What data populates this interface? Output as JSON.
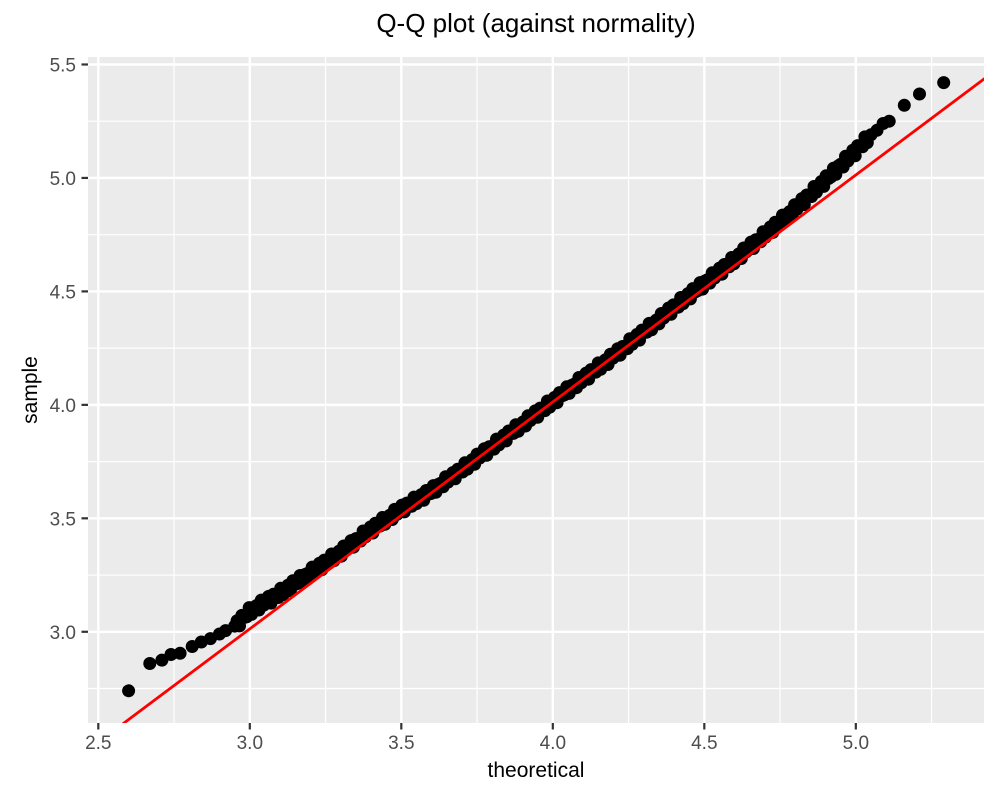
{
  "chart_data": {
    "type": "scatter",
    "title": "Q-Q plot (against normality)",
    "xlabel": "theoretical",
    "ylabel": "sample",
    "xlim": [
      2.466,
      5.423
    ],
    "ylim": [
      2.598,
      5.533
    ],
    "x_major_ticks": [
      2.5,
      3.0,
      3.5,
      4.0,
      4.5,
      5.0
    ],
    "y_major_ticks": [
      3.0,
      3.5,
      4.0,
      4.5,
      5.0,
      5.5
    ],
    "x_minor_gridlines": [
      2.75,
      3.25,
      3.75,
      4.25,
      4.75,
      5.25
    ],
    "y_minor_gridlines": [
      2.75,
      3.25,
      3.75,
      4.25,
      4.75,
      5.25
    ],
    "x_tick_labels": [
      "2.5",
      "3.0",
      "3.5",
      "4.0",
      "4.5",
      "5.0"
    ],
    "y_tick_labels": [
      "3.0",
      "3.5",
      "4.0",
      "4.5",
      "5.0",
      "5.5"
    ],
    "grid": "on",
    "legend": "none",
    "reference_line": {
      "x1": 2.58,
      "y1": 2.593,
      "x2": 5.43,
      "y2": 5.443
    },
    "tail_points": [
      [
        2.6,
        2.74
      ],
      [
        2.67,
        2.86
      ],
      [
        2.71,
        2.875
      ],
      [
        2.74,
        2.9
      ],
      [
        2.77,
        2.905
      ],
      [
        2.81,
        2.935
      ],
      [
        2.84,
        2.955
      ],
      [
        2.87,
        2.97
      ],
      [
        2.9,
        2.99
      ],
      [
        2.92,
        3.005
      ],
      [
        5.05,
        5.19
      ],
      [
        5.07,
        5.21
      ],
      [
        5.09,
        5.24
      ],
      [
        5.11,
        5.25
      ],
      [
        5.16,
        5.32
      ],
      [
        5.21,
        5.37
      ],
      [
        5.29,
        5.42
      ]
    ],
    "dense_band": {
      "x_start": 2.95,
      "x_end": 5.04,
      "x_step": 0.008,
      "y_jitter": 0.02,
      "center_points": [
        [
          2.95,
          3.025
        ],
        [
          3.0,
          3.09
        ],
        [
          3.05,
          3.13
        ],
        [
          3.1,
          3.17
        ],
        [
          3.15,
          3.215
        ],
        [
          3.2,
          3.26
        ],
        [
          3.25,
          3.305
        ],
        [
          3.3,
          3.35
        ],
        [
          3.35,
          3.4
        ],
        [
          3.4,
          3.45
        ],
        [
          3.45,
          3.495
        ],
        [
          3.5,
          3.54
        ],
        [
          3.55,
          3.58
        ],
        [
          3.6,
          3.62
        ],
        [
          3.7,
          3.715
        ],
        [
          3.8,
          3.815
        ],
        [
          3.9,
          3.915
        ],
        [
          4.0,
          4.015
        ],
        [
          4.1,
          4.115
        ],
        [
          4.2,
          4.215
        ],
        [
          4.3,
          4.32
        ],
        [
          4.4,
          4.43
        ],
        [
          4.5,
          4.535
        ],
        [
          4.6,
          4.64
        ],
        [
          4.7,
          4.75
        ],
        [
          4.8,
          4.865
        ],
        [
          4.9,
          4.99
        ],
        [
          4.95,
          5.055
        ],
        [
          5.0,
          5.12
        ],
        [
          5.04,
          5.175
        ]
      ]
    },
    "colors": {
      "panel_background": "#EBEBEB",
      "gridline": "#FFFFFF",
      "point": "#000000",
      "reference_line": "#FF0000",
      "tick_mark": "#333333",
      "tick_text": "#4D4D4D",
      "title_text": "#000000"
    }
  }
}
